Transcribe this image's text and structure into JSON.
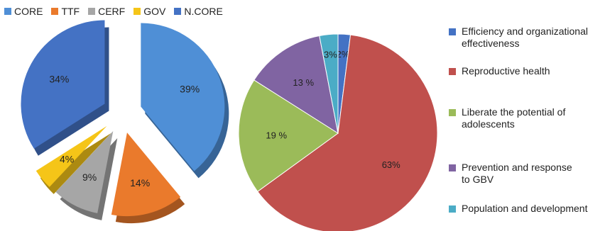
{
  "chart_data": [
    {
      "type": "pie",
      "style": "3d-exploded",
      "legend_position": "top",
      "categories": [
        "CORE",
        "TTF",
        "CERF",
        "GOV",
        "N.CORE"
      ],
      "values": [
        39,
        14,
        9,
        4,
        34
      ],
      "value_labels": [
        "39%",
        "14%",
        "9%",
        "4%",
        "34%"
      ],
      "colors": [
        "#4f8fd6",
        "#ea7a2c",
        "#a6a6a6",
        "#f5c518",
        "#4472c4"
      ]
    },
    {
      "type": "pie",
      "legend_position": "right",
      "categories": [
        "Efficiency and organizational effectiveness",
        "Reproductive health",
        "Liberate the potential of adolescents",
        "Prevention and response to GBV",
        "Population and development"
      ],
      "legend_labels": [
        [
          "Efficiency and organizational",
          "effectiveness"
        ],
        [
          "Reproductive health"
        ],
        [
          "Liberate the potential of",
          "adolescents"
        ],
        [
          "Prevention and response",
          "to GBV"
        ],
        [
          "Population and development"
        ]
      ],
      "values": [
        2,
        63,
        19,
        13,
        3
      ],
      "value_labels": [
        "2%",
        "63%",
        "19 %",
        "13 %",
        "3%"
      ],
      "colors": [
        "#4472c4",
        "#c0504d",
        "#9bbb59",
        "#8064a2",
        "#4bacc6"
      ]
    }
  ]
}
